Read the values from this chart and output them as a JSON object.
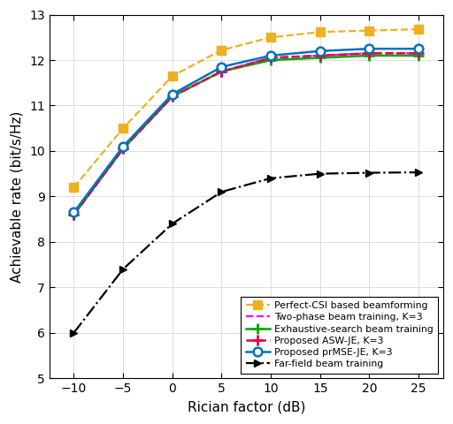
{
  "x": [
    -10,
    -5,
    0,
    5,
    10,
    15,
    20,
    25
  ],
  "proposed_prMSE": [
    8.65,
    10.1,
    11.25,
    11.85,
    12.1,
    12.2,
    12.25,
    12.25
  ],
  "proposed_ASW": [
    8.6,
    10.05,
    11.2,
    11.75,
    12.05,
    12.1,
    12.15,
    12.15
  ],
  "exhaustive": [
    8.6,
    10.05,
    11.2,
    11.75,
    12.0,
    12.05,
    12.1,
    12.1
  ],
  "two_phase": [
    8.6,
    10.05,
    11.2,
    11.75,
    12.05,
    12.1,
    12.15,
    12.15
  ],
  "perfect_CSI": [
    9.2,
    10.5,
    11.65,
    12.22,
    12.5,
    12.62,
    12.65,
    12.68
  ],
  "far_field": [
    6.0,
    7.4,
    8.4,
    9.1,
    9.4,
    9.5,
    9.52,
    9.53
  ],
  "colors": {
    "proposed_prMSE": "#0072BD",
    "proposed_ASW": "#E8004C",
    "exhaustive": "#00A800",
    "two_phase": "#FF00FF",
    "perfect_CSI": "#EDB120",
    "far_field": "#000000"
  },
  "xlabel": "Rician factor (dB)",
  "ylabel": "Achievable rate (bit/s/Hz)",
  "xlim": [
    -12.5,
    27.5
  ],
  "ylim": [
    5,
    13
  ],
  "yticks": [
    5,
    6,
    7,
    8,
    9,
    10,
    11,
    12,
    13
  ],
  "xticks": [
    -10,
    -5,
    0,
    5,
    10,
    15,
    20,
    25
  ],
  "legend": {
    "proposed_prMSE": "Proposed prMSE-JE, K=3",
    "proposed_ASW": "Proposed ASW-JE, K=3",
    "exhaustive": "Exhaustive-search beam training",
    "two_phase": "Two-phase beam training, K=3",
    "perfect_CSI": "Perfect-CSI based beamforming",
    "far_field": "Far-field beam training"
  },
  "figsize": [
    5.12,
    4.8
  ],
  "dpi": 100
}
